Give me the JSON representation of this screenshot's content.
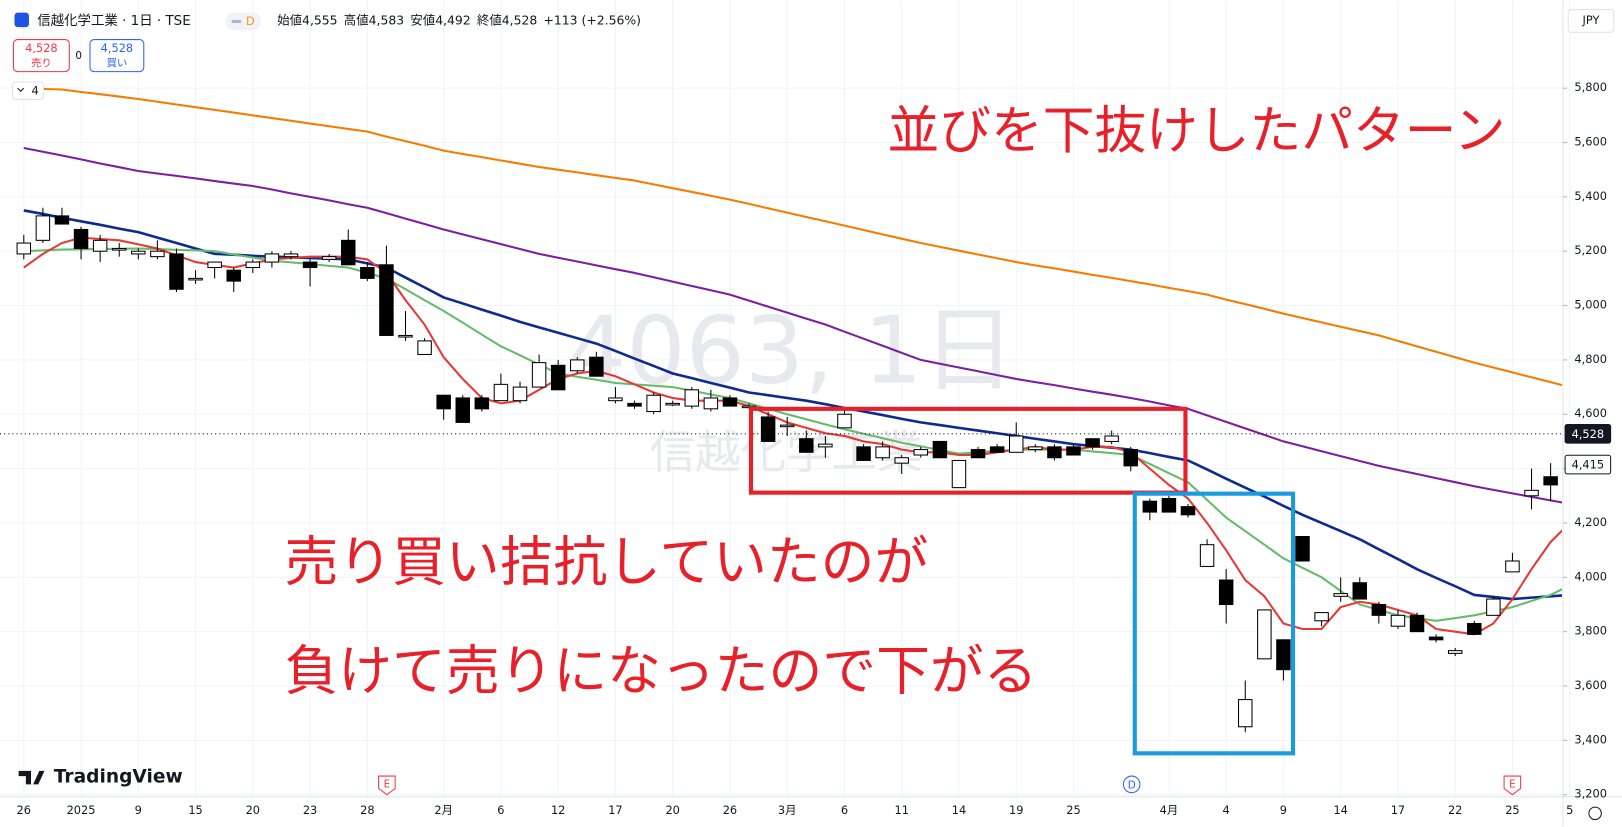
{
  "chart_data": {
    "type": "candlestick",
    "symbol": "信越化学工業 · 1日 · TSE",
    "interval_badge": "D",
    "legend": [
      {
        "label": "始値",
        "value": "4,555"
      },
      {
        "label": "高値",
        "value": "4,583"
      },
      {
        "label": "安値",
        "value": "4,492"
      },
      {
        "label": "終値",
        "value": "4,528"
      }
    ],
    "change": "+113 (+2.56%)",
    "sell_button": {
      "price": "4,528",
      "label": "売り"
    },
    "spread": "0",
    "buy_button": {
      "price": "4,528",
      "label": "買い"
    },
    "indicator_count": "4",
    "currency": "JPY",
    "watermark": {
      "symbol": "4063, 1日",
      "name": "信越化学工業"
    },
    "annotations": [
      "並びを下抜けしたパターン",
      "売り買い拮抗していたのが",
      "負けて売りになったので下がる"
    ],
    "logo": "TradingView",
    "events": [
      "E",
      "D",
      "E"
    ],
    "up_color": "#ffffff",
    "down_color": "#000000",
    "categories": [
      "26",
      null,
      null,
      "2025",
      null,
      null,
      "9",
      null,
      null,
      "15",
      null,
      null,
      "20",
      null,
      null,
      "23",
      null,
      null,
      "28",
      null,
      null,
      null,
      "2月",
      null,
      null,
      "6",
      null,
      null,
      "12",
      null,
      null,
      "17",
      null,
      null,
      "20",
      null,
      null,
      "26",
      null,
      null,
      "3月",
      null,
      null,
      "6",
      null,
      null,
      "11",
      null,
      null,
      "14",
      null,
      null,
      "19",
      null,
      null,
      "25",
      null,
      null,
      null,
      null,
      "4月",
      null,
      null,
      "4",
      null,
      null,
      "9",
      null,
      null,
      "14",
      null,
      null,
      "17",
      null,
      null,
      "22",
      null,
      null,
      "25",
      null,
      null,
      "5"
    ],
    "open": [
      5190,
      5240,
      5330,
      5280,
      5200,
      5210,
      5190,
      5180,
      5190,
      5100,
      5140,
      5130,
      5140,
      5160,
      5180,
      5160,
      5170,
      5240,
      5140,
      5150,
      4890,
      4820,
      4670,
      4660,
      4660,
      4650,
      4650,
      4700,
      4780,
      4760,
      4810,
      4650,
      4640,
      4610,
      4640,
      4630,
      4620,
      4660,
      4630,
      4590,
      4560,
      4510,
      4480,
      4550,
      4480,
      4440,
      4420,
      4450,
      4500,
      4330,
      4470,
      4480,
      4460,
      4470,
      4480,
      4480,
      4510,
      4500,
      4470,
      4280,
      4290,
      4260,
      4040,
      3990,
      3450,
      3700,
      3770,
      4150,
      3840,
      3930,
      3980,
      3900,
      3820,
      3860,
      3780,
      3720,
      3830,
      3860,
      4020,
      4300,
      4370,
      4430
    ],
    "high": [
      5260,
      5360,
      5360,
      5290,
      5260,
      5230,
      5210,
      5240,
      5210,
      5130,
      5160,
      5140,
      5170,
      5200,
      5200,
      5170,
      5190,
      5280,
      5160,
      5220,
      4980,
      4880,
      4670,
      4670,
      4670,
      4750,
      4720,
      4820,
      4800,
      4810,
      4830,
      4700,
      4650,
      4680,
      4650,
      4700,
      4690,
      4670,
      4640,
      4610,
      4590,
      4540,
      4520,
      4620,
      4490,
      4500,
      4450,
      4480,
      4500,
      4430,
      4480,
      4490,
      4570,
      4490,
      4490,
      4490,
      4510,
      4540,
      4480,
      4290,
      4300,
      4270,
      4140,
      4030,
      3620,
      3880,
      3770,
      4150,
      3870,
      4000,
      4000,
      3910,
      3880,
      3870,
      3790,
      3740,
      3840,
      3930,
      4090,
      4400,
      4420,
      4530
    ],
    "low": [
      5170,
      5230,
      5300,
      5170,
      5160,
      5180,
      5170,
      5170,
      5050,
      5080,
      5100,
      5050,
      5120,
      5140,
      5170,
      5070,
      5160,
      5150,
      5090,
      4890,
      4870,
      4820,
      4580,
      4570,
      4610,
      4650,
      4640,
      4700,
      4690,
      4750,
      4740,
      4640,
      4620,
      4600,
      4630,
      4620,
      4610,
      4630,
      4620,
      4500,
      4520,
      4460,
      4440,
      4550,
      4430,
      4430,
      4380,
      4440,
      4440,
      4330,
      4440,
      4460,
      4460,
      4460,
      4430,
      4450,
      4470,
      4490,
      4390,
      4210,
      4240,
      4220,
      4040,
      3830,
      3430,
      3700,
      3620,
      4060,
      3820,
      3910,
      3920,
      3830,
      3810,
      3800,
      3760,
      3710,
      3790,
      3860,
      4020,
      4250,
      4280,
      4410
    ],
    "close": [
      5230,
      5330,
      5300,
      5210,
      5240,
      5210,
      5200,
      5200,
      5060,
      5100,
      5160,
      5090,
      5160,
      5190,
      5190,
      5140,
      5180,
      5150,
      5100,
      4890,
      4890,
      4870,
      4620,
      4570,
      4620,
      4710,
      4700,
      4790,
      4690,
      4800,
      4740,
      4660,
      4630,
      4670,
      4640,
      4690,
      4660,
      4630,
      4630,
      4500,
      4560,
      4460,
      4490,
      4600,
      4430,
      4480,
      4440,
      4470,
      4440,
      4430,
      4440,
      4460,
      4520,
      4480,
      4440,
      4450,
      4480,
      4520,
      4410,
      4240,
      4240,
      4230,
      4120,
      3900,
      3550,
      3880,
      3660,
      4060,
      3870,
      3940,
      3920,
      3860,
      3860,
      3800,
      3770,
      3730,
      3790,
      3920,
      4060,
      4320,
      4340,
      4420
    ],
    "lines": [
      {
        "color": "#f57c00",
        "values": [
          5800,
          5797,
          5795,
          5786,
          5778,
          5769,
          5760,
          5750,
          5740,
          5730,
          5720,
          5710,
          5700,
          5690,
          5680,
          5670,
          5660,
          5650,
          5640,
          5622,
          5605,
          5588,
          5570,
          5558,
          5546,
          5534,
          5522,
          5510,
          5500,
          5490,
          5480,
          5470,
          5460,
          5446,
          5432,
          5418,
          5404,
          5390,
          5374,
          5358,
          5342,
          5326,
          5310,
          5294,
          5278,
          5262,
          5246,
          5230,
          5216,
          5202,
          5188,
          5174,
          5160,
          5148,
          5137,
          5125,
          5113,
          5102,
          5090,
          5078,
          5065,
          5053,
          5040,
          5022,
          5005,
          4988,
          4970,
          4954,
          4938,
          4922,
          4906,
          4890,
          4870,
          4850,
          4830,
          4810,
          4790,
          4772,
          4754,
          4736,
          4718,
          4700
        ]
      },
      {
        "color": "#7b1fa2",
        "values": [
          5580,
          5566,
          5552,
          5538,
          5523,
          5509,
          5495,
          5486,
          5477,
          5468,
          5458,
          5449,
          5440,
          5427,
          5413,
          5400,
          5387,
          5373,
          5360,
          5340,
          5320,
          5300,
          5280,
          5262,
          5244,
          5226,
          5208,
          5190,
          5176,
          5162,
          5148,
          5134,
          5120,
          5104,
          5088,
          5072,
          5056,
          5040,
          5018,
          4996,
          4974,
          4952,
          4930,
          4904,
          4878,
          4852,
          4826,
          4800,
          4786,
          4772,
          4758,
          4744,
          4730,
          4718,
          4707,
          4695,
          4683,
          4672,
          4660,
          4647,
          4633,
          4620,
          4596,
          4572,
          4548,
          4524,
          4500,
          4482,
          4464,
          4446,
          4428,
          4410,
          4395,
          4380,
          4365,
          4350,
          4335,
          4322,
          4309,
          4296,
          4283,
          4270
        ]
      },
      {
        "color": "#0d2a8f",
        "values": [
          5350,
          5337,
          5323,
          5310,
          5297,
          5283,
          5270,
          5250,
          5230,
          5210,
          5190,
          5187,
          5183,
          5180,
          5178,
          5175,
          5173,
          5170,
          5155,
          5140,
          5103,
          5067,
          5030,
          5008,
          4985,
          4963,
          4940,
          4920,
          4900,
          4880,
          4860,
          4833,
          4805,
          4778,
          4750,
          4733,
          4715,
          4698,
          4680,
          4670,
          4660,
          4650,
          4637,
          4623,
          4610,
          4597,
          4583,
          4570,
          4560,
          4550,
          4540,
          4530,
          4520,
          4510,
          4500,
          4490,
          4483,
          4477,
          4470,
          4457,
          4443,
          4430,
          4397,
          4363,
          4330,
          4297,
          4263,
          4230,
          4200,
          4170,
          4140,
          4103,
          4067,
          4030,
          3998,
          3967,
          3935,
          3928,
          3920,
          3925,
          3930,
          3935
        ]
      },
      {
        "color": "#66bb6a",
        "values": [
          5200,
          5203,
          5206,
          5207,
          5208,
          5209,
          5210,
          5208,
          5205,
          5203,
          5200,
          5188,
          5177,
          5165,
          5159,
          5153,
          5146,
          5140,
          5120,
          5100,
          5060,
          5020,
          4980,
          4937,
          4893,
          4850,
          4817,
          4783,
          4750,
          4738,
          4727,
          4715,
          4710,
          4705,
          4700,
          4687,
          4673,
          4660,
          4640,
          4620,
          4600,
          4582,
          4563,
          4545,
          4528,
          4512,
          4495,
          4482,
          4468,
          4455,
          4460,
          4465,
          4470,
          4470,
          4470,
          4470,
          4463,
          4457,
          4450,
          4417,
          4383,
          4350,
          4285,
          4220,
          4170,
          4120,
          4070,
          4035,
          4000,
          3950,
          3900,
          3880,
          3860,
          3850,
          3840,
          3850,
          3860,
          3875,
          3890,
          3913,
          3935,
          3970
        ]
      },
      {
        "color": "#e53935",
        "values": [
          5140,
          5190,
          5230,
          5250,
          5245,
          5240,
          5225,
          5210,
          5185,
          5160,
          5150,
          5140,
          5155,
          5170,
          5175,
          5180,
          5180,
          5180,
          5170,
          5120,
          5020,
          4930,
          4810,
          4730,
          4660,
          4640,
          4650,
          4690,
          4730,
          4750,
          4760,
          4740,
          4710,
          4680,
          4660,
          4650,
          4650,
          4650,
          4630,
          4600,
          4570,
          4550,
          4530,
          4520,
          4500,
          4490,
          4470,
          4460,
          4460,
          4450,
          4450,
          4460,
          4470,
          4480,
          4470,
          4470,
          4480,
          4480,
          4460,
          4400,
          4340,
          4290,
          4200,
          4100,
          3990,
          3930,
          3830,
          3810,
          3810,
          3890,
          3910,
          3900,
          3880,
          3860,
          3810,
          3800,
          3790,
          3830,
          3920,
          4030,
          4130,
          4200
        ]
      }
    ],
    "ylim": [
      3200,
      5800
    ],
    "yticks": [
      {
        "value": 3200,
        "label": "3,200"
      },
      {
        "value": 3400,
        "label": "3,400"
      },
      {
        "value": 3600,
        "label": "3,600"
      },
      {
        "value": 3800,
        "label": "3,800"
      },
      {
        "value": 4000,
        "label": "4,000"
      },
      {
        "value": 4200,
        "label": "4,200"
      },
      {
        "value": 4400,
        "label": "4,400"
      },
      {
        "value": 4600,
        "label": "4,600"
      },
      {
        "value": 4800,
        "label": "4,800"
      },
      {
        "value": 5000,
        "label": "5,000"
      },
      {
        "value": 5200,
        "label": "5,200"
      },
      {
        "value": 5400,
        "label": "5,400"
      },
      {
        "value": 5600,
        "label": "5,600"
      },
      {
        "value": 5800,
        "label": "5,800"
      }
    ],
    "price_tags": [
      {
        "value": 4528,
        "label": "4,528"
      },
      {
        "value": 4415,
        "label": "4,415"
      }
    ],
    "grid": true
  }
}
